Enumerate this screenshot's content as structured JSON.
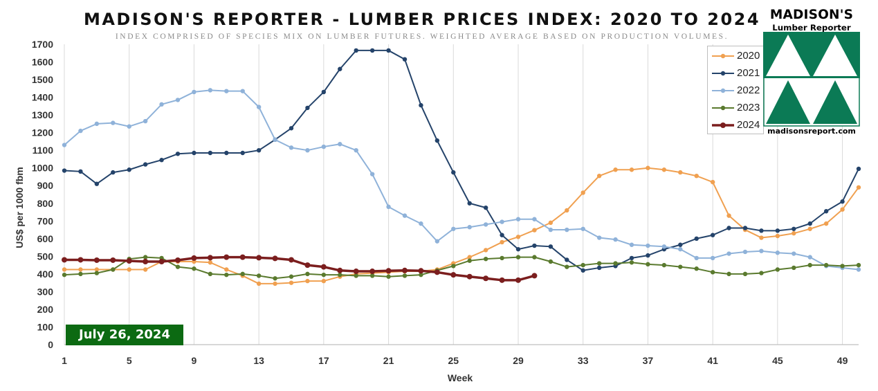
{
  "header": {
    "title": "MADISON'S REPORTER - LUMBER PRICES INDEX: 2020 TO 2024",
    "subtitle": "INDEX COMPRISED OF SPECIES MIX ON LUMBER FUTURES. WEIGHTED AVERAGE BASED ON PRODUCTION VOLUMES."
  },
  "logo": {
    "name": "MADISON'S",
    "sub": "Lumber Reporter",
    "url": "madisonsreport.com",
    "icon": "twin-tree-triangles-icon",
    "color": "#0b7a55"
  },
  "badge": {
    "date": "July 26, 2024",
    "color": "#0c6a12"
  },
  "chart_data": {
    "type": "line",
    "title": "MADISON'S REPORTER - LUMBER PRICES INDEX: 2020 TO 2024",
    "xlabel": "Week",
    "ylabel": "US$ per 1000 fbm",
    "xlim": [
      1,
      50
    ],
    "ylim": [
      0,
      1700
    ],
    "xticks": [
      1,
      5,
      9,
      13,
      17,
      21,
      25,
      29,
      33,
      37,
      41,
      45,
      49
    ],
    "yticks": [
      0,
      100,
      200,
      300,
      400,
      500,
      600,
      700,
      800,
      900,
      1000,
      1100,
      1200,
      1300,
      1400,
      1500,
      1600,
      1700
    ],
    "grid": "vertical",
    "legend": "top-right",
    "series": [
      {
        "name": "2020",
        "color": "#f0a050",
        "width": 2,
        "marker": 3.2,
        "values": [
          425,
          425,
          425,
          425,
          425,
          425,
          470,
          470,
          470,
          465,
          425,
          390,
          345,
          345,
          350,
          360,
          360,
          385,
          400,
          405,
          410,
          415,
          415,
          425,
          460,
          495,
          535,
          580,
          610,
          648,
          690,
          760,
          860,
          955,
          990,
          990,
          1000,
          990,
          975,
          955,
          920,
          730,
          650,
          605,
          615,
          630,
          655,
          685,
          765,
          890
        ]
      },
      {
        "name": "2021",
        "color": "#24436a",
        "width": 2,
        "marker": 3.2,
        "values": [
          985,
          980,
          910,
          975,
          990,
          1020,
          1045,
          1080,
          1085,
          1085,
          1085,
          1085,
          1100,
          1160,
          1225,
          1340,
          1430,
          1560,
          1665,
          1665,
          1665,
          1615,
          1355,
          1155,
          975,
          800,
          775,
          620,
          540,
          560,
          555,
          480,
          420,
          435,
          445,
          490,
          505,
          540,
          565,
          600,
          620,
          660,
          660,
          645,
          645,
          655,
          685,
          755,
          810,
          995
        ]
      },
      {
        "name": "2022",
        "color": "#8fb2d9",
        "width": 2,
        "marker": 3.2,
        "values": [
          1130,
          1210,
          1250,
          1255,
          1235,
          1265,
          1360,
          1385,
          1430,
          1440,
          1435,
          1435,
          1345,
          1160,
          1115,
          1100,
          1120,
          1135,
          1100,
          965,
          780,
          730,
          685,
          585,
          655,
          665,
          680,
          695,
          710,
          710,
          650,
          650,
          655,
          605,
          595,
          565,
          560,
          555,
          540,
          490,
          490,
          515,
          525,
          530,
          520,
          515,
          495,
          445,
          435,
          425
        ]
      },
      {
        "name": "2023",
        "color": "#5a7a2e",
        "width": 2,
        "marker": 3.2,
        "values": [
          395,
          400,
          405,
          425,
          485,
          495,
          490,
          440,
          430,
          400,
          395,
          400,
          390,
          375,
          385,
          400,
          395,
          395,
          390,
          390,
          385,
          390,
          395,
          420,
          445,
          475,
          485,
          490,
          495,
          495,
          470,
          440,
          450,
          460,
          460,
          465,
          455,
          450,
          440,
          430,
          410,
          400,
          400,
          405,
          425,
          435,
          450,
          450,
          445,
          450
        ]
      },
      {
        "name": "2024",
        "color": "#7b1e1e",
        "width": 3.5,
        "marker": 4,
        "values": [
          480,
          480,
          478,
          478,
          474,
          470,
          470,
          478,
          490,
          492,
          495,
          495,
          492,
          488,
          480,
          450,
          440,
          420,
          415,
          415,
          418,
          420,
          418,
          410,
          395,
          385,
          375,
          365,
          365,
          390
        ]
      }
    ]
  }
}
